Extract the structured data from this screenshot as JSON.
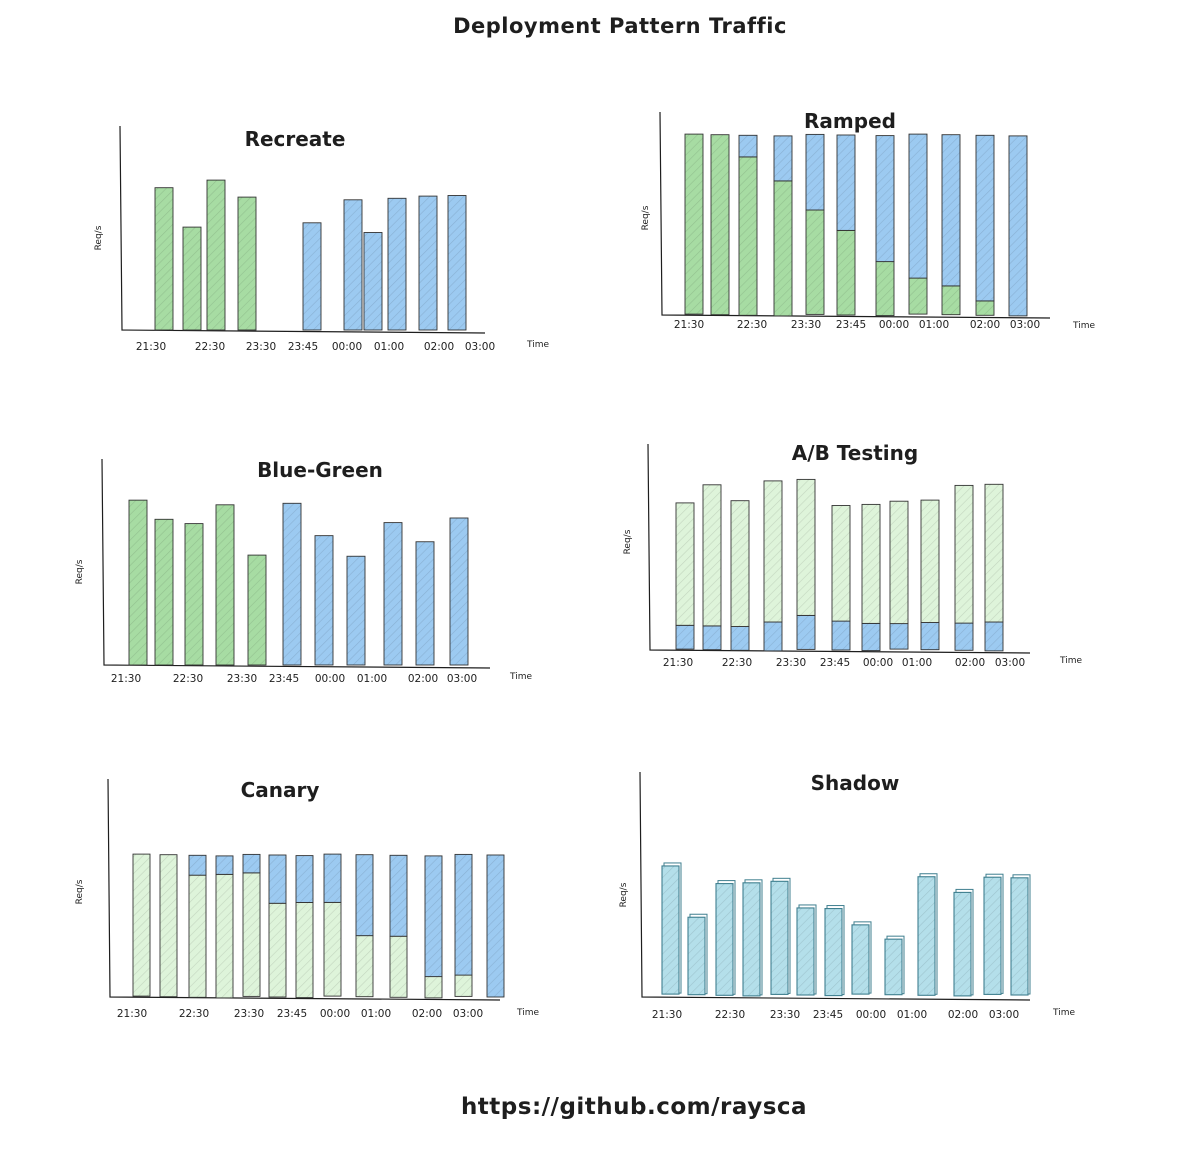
{
  "title": "Deployment Pattern Traffic",
  "footer": "https://github.com/raysca",
  "colors": {
    "green": "#a7dca3",
    "blue": "#9ccaf1",
    "light_green": "#def4da",
    "shadow": "#b4dfea"
  },
  "chart_data": [
    {
      "type": "bar",
      "title": "Recreate",
      "ylabel": "Req/s",
      "xlabel": "Time",
      "ylim": [
        0,
        100
      ],
      "ticks": [
        "21:30",
        "22:30",
        "23:30",
        "23:45",
        "00:00",
        "01:00",
        "02:00",
        "03:00"
      ],
      "series": [
        {
          "color": "green",
          "values": [
            88,
            64,
            94,
            84,
            0,
            0,
            0,
            0,
            0,
            0,
            0,
            0
          ]
        },
        {
          "color": "blue",
          "values": [
            0,
            0,
            0,
            0,
            0,
            67,
            82,
            60,
            82,
            84,
            85,
            0
          ]
        }
      ]
    },
    {
      "type": "bar",
      "title": "Ramped",
      "ylabel": "Req/s",
      "xlabel": "Time",
      "ylim": [
        0,
        100
      ],
      "stacked": true,
      "ticks": [
        "21:30",
        "22:30",
        "23:30",
        "23:45",
        "00:00",
        "01:00",
        "02:00",
        "03:00"
      ],
      "series": [
        {
          "color": "green",
          "values": [
            100,
            100,
            88,
            75,
            58,
            47,
            30,
            20,
            16,
            8,
            0
          ]
        },
        {
          "color": "blue",
          "values": [
            0,
            0,
            12,
            25,
            42,
            53,
            70,
            80,
            84,
            92,
            100
          ]
        }
      ]
    },
    {
      "type": "bar",
      "title": "Blue-Green",
      "ylabel": "Req/s",
      "xlabel": "Time",
      "ylim": [
        0,
        100
      ],
      "ticks": [
        "21:30",
        "22:30",
        "23:30",
        "23:45",
        "00:00",
        "01:00",
        "02:00",
        "03:00"
      ],
      "series": [
        {
          "color": "green",
          "values": [
            99,
            88,
            86,
            98,
            66,
            0,
            0,
            0,
            0,
            0,
            0
          ]
        },
        {
          "color": "blue",
          "values": [
            0,
            0,
            0,
            0,
            0,
            98,
            79,
            65,
            86,
            75,
            90
          ]
        }
      ]
    },
    {
      "type": "bar",
      "title": "A/B Testing",
      "ylabel": "Req/s",
      "xlabel": "Time",
      "ylim": [
        0,
        100
      ],
      "stacked": true,
      "ticks": [
        "21:30",
        "22:30",
        "23:30",
        "23:45",
        "00:00",
        "01:00",
        "02:00",
        "03:00"
      ],
      "series": [
        {
          "color": "blue",
          "values": [
            14,
            14,
            14,
            17,
            20,
            17,
            16,
            15,
            16,
            16,
            17
          ]
        },
        {
          "color": "light_green",
          "values": [
            72,
            83,
            74,
            83,
            80,
            68,
            70,
            72,
            72,
            81,
            81
          ]
        }
      ]
    },
    {
      "type": "bar",
      "title": "Canary",
      "ylabel": "Req/s",
      "xlabel": "Time",
      "ylim": [
        0,
        100
      ],
      "stacked": true,
      "ticks": [
        "21:30",
        "22:30",
        "23:30",
        "23:45",
        "00:00",
        "01:00",
        "02:00",
        "03:00"
      ],
      "series": [
        {
          "color": "light_green",
          "values": [
            100,
            100,
            86,
            87,
            87,
            66,
            67,
            66,
            43,
            43,
            15,
            15,
            0
          ]
        },
        {
          "color": "blue",
          "values": [
            0,
            0,
            14,
            13,
            13,
            34,
            33,
            34,
            57,
            57,
            85,
            85,
            100
          ]
        }
      ]
    },
    {
      "type": "bar",
      "title": "Shadow",
      "ylabel": "Req/s",
      "xlabel": "Time",
      "ylim": [
        0,
        100
      ],
      "overlay": true,
      "ticks": [
        "21:30",
        "22:30",
        "23:30",
        "23:45",
        "00:00",
        "01:00",
        "02:00",
        "03:00"
      ],
      "series": [
        {
          "color": "shadow",
          "values": [
            95,
            58,
            83,
            84,
            84,
            65,
            65,
            52,
            42,
            88,
            77,
            87,
            87
          ]
        }
      ]
    }
  ]
}
